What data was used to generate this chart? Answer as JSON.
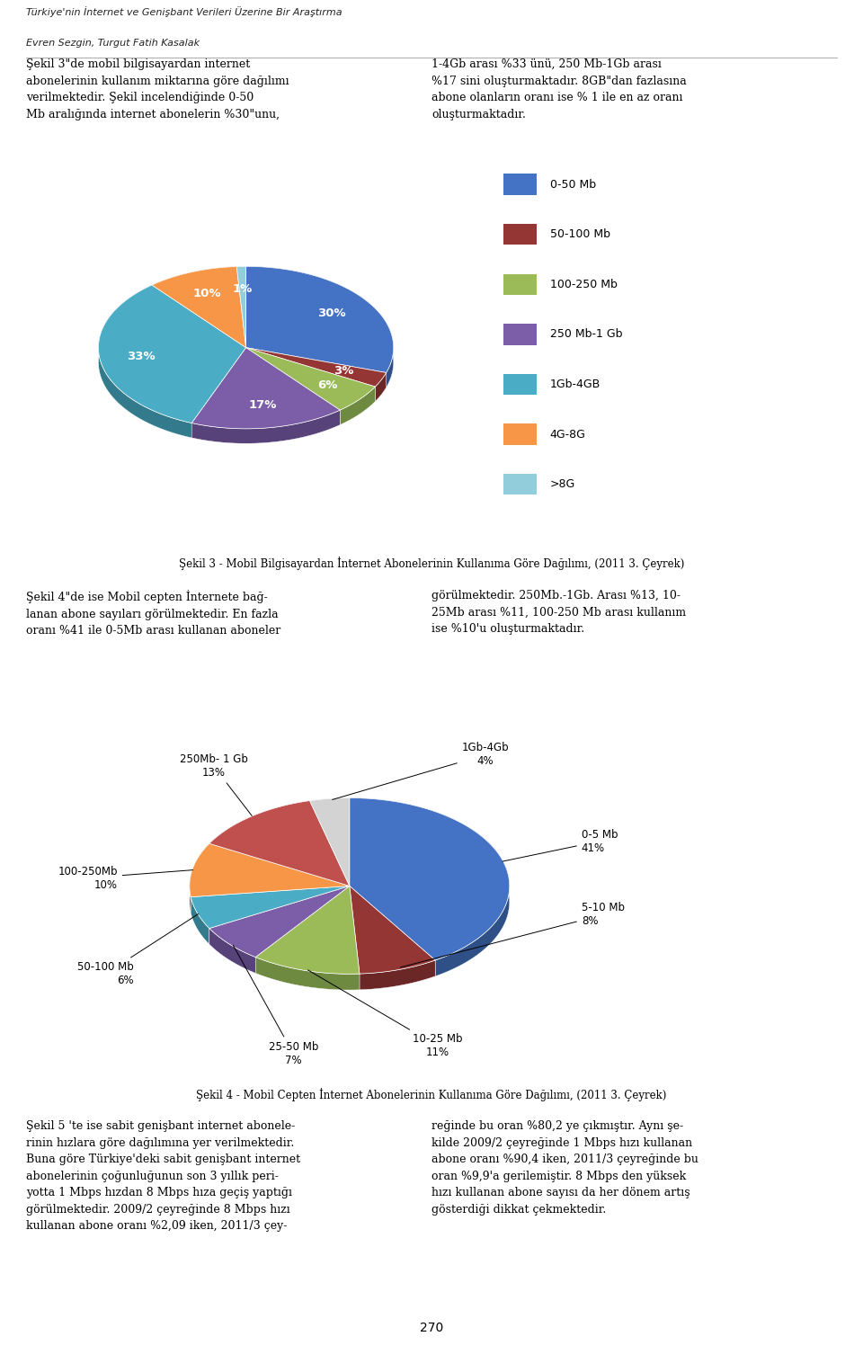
{
  "chart1": {
    "title": "Şekil 3 - Mobil Bilgisayardan İnternet Abonelerinin Kullanıma Göre Dağılımı, (2011 3. Çeyrek)",
    "values": [
      30,
      3,
      6,
      17,
      33,
      10,
      1
    ],
    "colors": [
      "#4472C4",
      "#943634",
      "#9BBB59",
      "#7B5EA7",
      "#4BACC6",
      "#F79646",
      "#92CDDC"
    ],
    "dark_colors": [
      "#2E5087",
      "#6B2626",
      "#6E8940",
      "#574279",
      "#337A8C",
      "#B05C20",
      "#6A9FB0"
    ],
    "pct_labels": [
      "30%",
      "3%",
      "6%",
      "17%",
      "33%",
      "10%",
      "1%"
    ],
    "legend_labels": [
      "0-50 Mb",
      "50-100 Mb",
      "100-250 Mb",
      "250 Mb-1 Gb",
      "1Gb-4GB",
      "4G-8G",
      ">8G"
    ]
  },
  "chart2": {
    "title": "Şekil 4 - Mobil Cepten İnternet Abonelerinin Kullanıma Göre Dağılımı, (2011 3. Çeyrek)",
    "values": [
      41,
      8,
      11,
      7,
      6,
      10,
      13,
      4
    ],
    "colors": [
      "#4472C4",
      "#943634",
      "#9BBB59",
      "#7B5EA7",
      "#4BACC6",
      "#F79646",
      "#C0504D",
      "#D3D3D3"
    ],
    "dark_colors": [
      "#2E5087",
      "#6B2626",
      "#6E8940",
      "#574279",
      "#337A8C",
      "#B05C20",
      "#8B3A38",
      "#A0A0A0"
    ],
    "ext_labels": [
      "0-5 Mb\n41%",
      "5-10 Mb\n8%",
      "10-25 Mb\n11%",
      "25-50 Mb\n7%",
      "50-100 Mb\n6%",
      "100-250Mb\n10%",
      "250Mb- 1 Gb\n13%",
      "1Gb-4Gb\n4%"
    ]
  },
  "header_line1": "Türkiye'nin İnternet ve Genişbant Verileri Üzerine Bir Araştırma",
  "header_line2": "Evren Sezgin, Turgut Fatih Kasalak",
  "page_number": "270",
  "background_color": "#FFFFFF"
}
